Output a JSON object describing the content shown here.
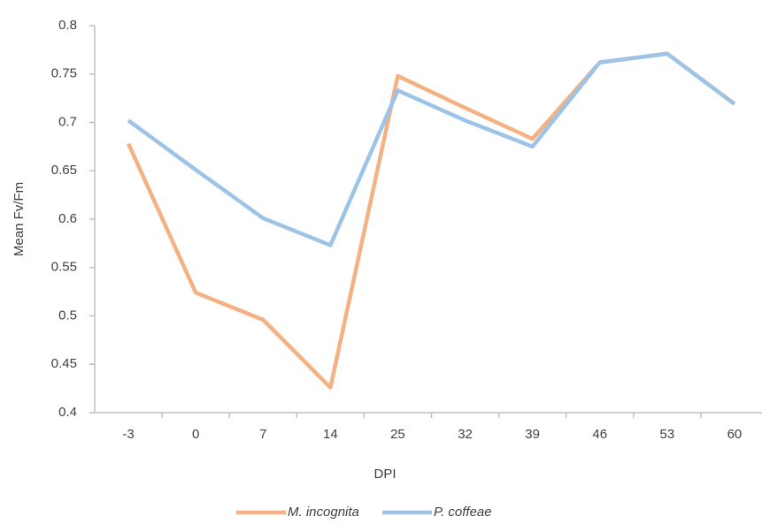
{
  "chart_data": {
    "type": "line",
    "x_label": "DPI",
    "y_label": "Mean Fv/Fm",
    "categories": [
      "-3",
      "0",
      "7",
      "14",
      "25",
      "32",
      "39",
      "46",
      "53",
      "60"
    ],
    "series": [
      {
        "name": "M. incognita",
        "color": "#f4b183",
        "values": [
          0.678,
          0.524,
          0.496,
          0.426,
          0.748,
          0.715,
          0.683,
          0.762,
          0.771,
          0.719
        ]
      },
      {
        "name": "P. coffeae",
        "color": "#9dc3e6",
        "values": [
          0.702,
          0.651,
          0.601,
          0.573,
          0.733,
          0.702,
          0.675,
          0.762,
          0.771,
          0.719
        ]
      }
    ],
    "ylim": [
      0.4,
      0.8
    ],
    "yticks": [
      0.4,
      0.45,
      0.5,
      0.55,
      0.6,
      0.65,
      0.7,
      0.75,
      0.8
    ],
    "grid": false
  }
}
